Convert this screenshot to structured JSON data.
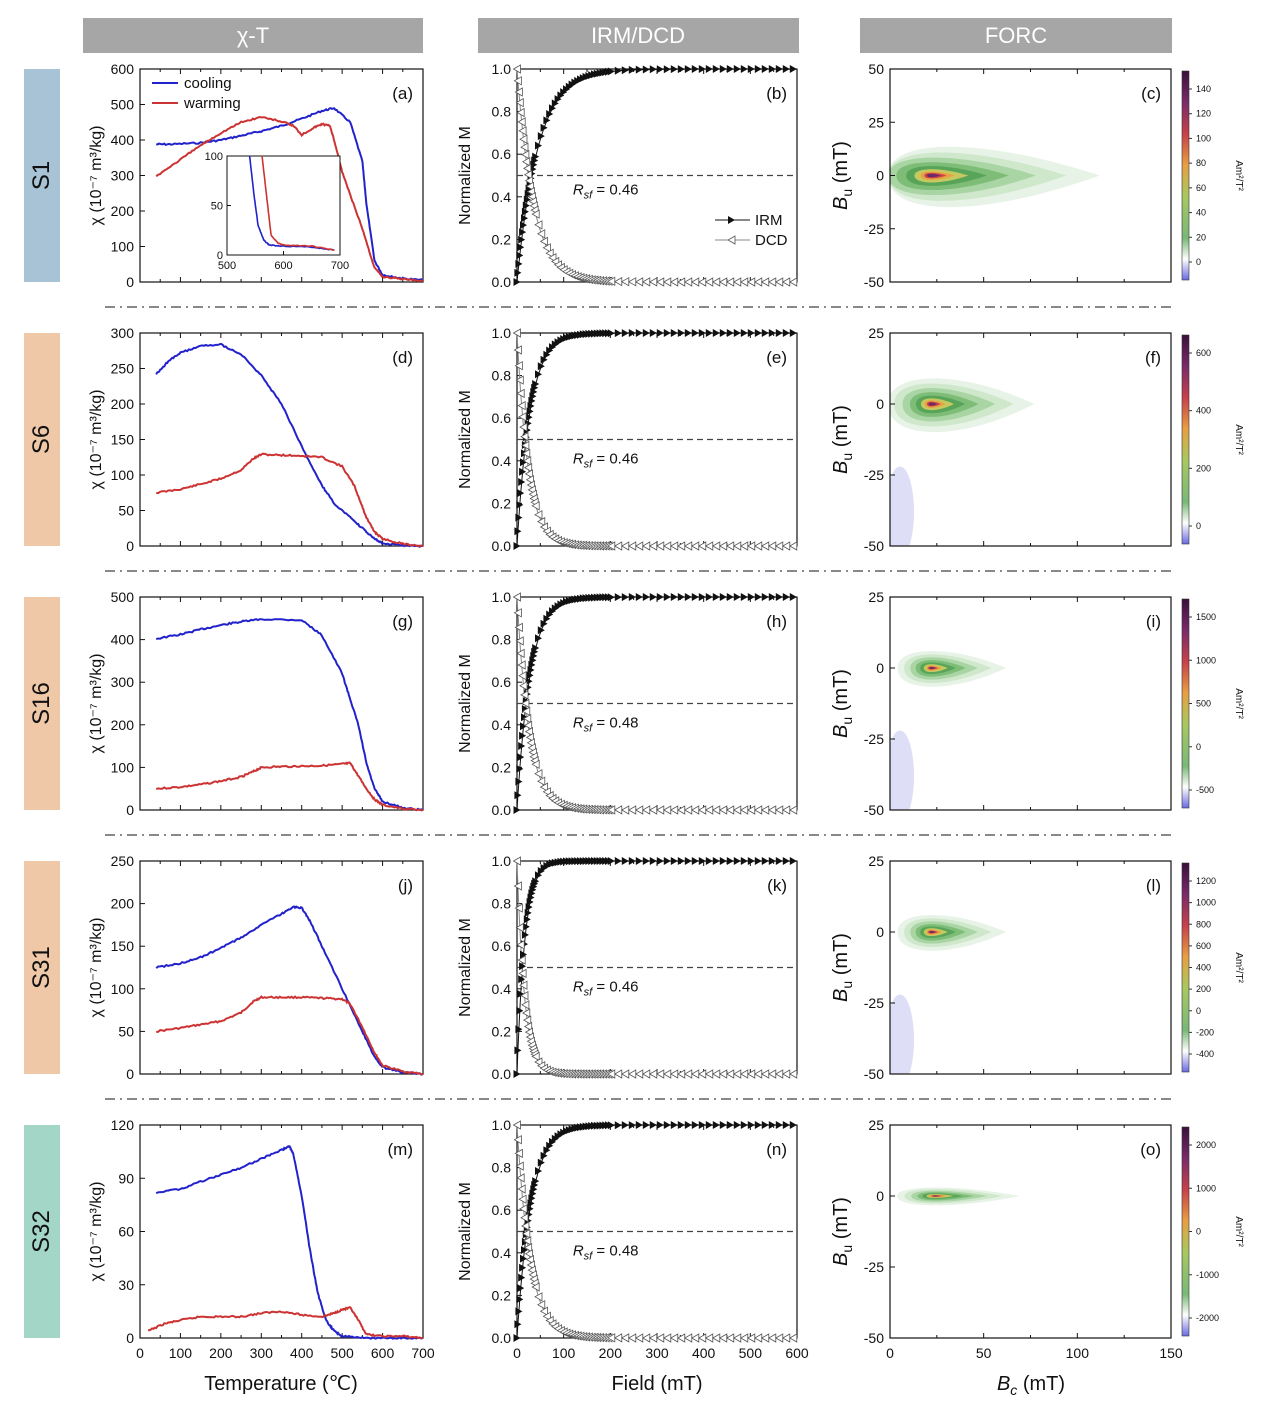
{
  "headers": [
    "χ-T",
    "IRM/DCD",
    "FORC"
  ],
  "colors": {
    "header_bg": "#a6a6a6",
    "cooling": "#2222cc",
    "warming": "#cc3333",
    "sample_bg": [
      "#a8c2d6",
      "#efc8a8",
      "#efc8a8",
      "#efc8a8",
      "#a4d6c8"
    ],
    "separator": "#888888"
  },
  "legend": {
    "cooling": "cooling",
    "warming": "warming",
    "irm": "IRM",
    "dcd": "DCD"
  },
  "axis_titles": {
    "chi_y": "χ (10⁻⁷ m³/kg)",
    "norm_y": "Normalized M",
    "bu_y": "Bu (mT)",
    "temp_x": "Temperature (℃)",
    "field_x": "Field (mT)",
    "bc_x": "Bc (mT)",
    "cb_unit": "Am²/T²"
  },
  "rows": [
    {
      "sample": "S1",
      "labels": [
        "(a)",
        "(b)",
        "(c)"
      ],
      "rsf": "Rsf = 0.46",
      "chi_ticks": [
        "0",
        "100",
        "200",
        "300",
        "400",
        "500",
        "600"
      ],
      "bu_ticks": [
        "50",
        "25",
        "0",
        "-25",
        "-50"
      ],
      "cb_ticks": [
        "140",
        "120",
        "100",
        "80",
        "60",
        "40",
        "20",
        "0"
      ],
      "inset_x_ticks": [
        "500",
        "600",
        "700"
      ],
      "inset_y_ticks": [
        "0",
        "50",
        "100"
      ]
    },
    {
      "sample": "S6",
      "labels": [
        "(d)",
        "(e)",
        "(f)"
      ],
      "rsf": "Rsf = 0.46",
      "chi_ticks": [
        "0",
        "50",
        "100",
        "150",
        "200",
        "250",
        "300"
      ],
      "bu_ticks": [
        "25",
        "0",
        "-25",
        "-50"
      ],
      "cb_ticks": [
        "600",
        "400",
        "200",
        "0"
      ]
    },
    {
      "sample": "S16",
      "labels": [
        "(g)",
        "(h)",
        "(i)"
      ],
      "rsf": "Rsf = 0.48",
      "chi_ticks": [
        "0",
        "100",
        "200",
        "300",
        "400",
        "500"
      ],
      "bu_ticks": [
        "25",
        "0",
        "-25",
        "-50"
      ],
      "cb_ticks": [
        "1500",
        "1000",
        "500",
        "0",
        "-500"
      ]
    },
    {
      "sample": "S31",
      "labels": [
        "(j)",
        "(k)",
        "(l)"
      ],
      "rsf": "Rsf = 0.46",
      "chi_ticks": [
        "0",
        "50",
        "100",
        "150",
        "200",
        "250"
      ],
      "bu_ticks": [
        "25",
        "0",
        "-25",
        "-50"
      ],
      "cb_ticks": [
        "1200",
        "1000",
        "800",
        "600",
        "400",
        "200",
        "0",
        "-200",
        "-400"
      ]
    },
    {
      "sample": "S32",
      "labels": [
        "(m)",
        "(n)",
        "(o)"
      ],
      "rsf": "Rsf = 0.48",
      "chi_ticks": [
        "0",
        "30",
        "60",
        "90",
        "120"
      ],
      "bu_ticks": [
        "25",
        "0",
        "-25",
        "-50"
      ],
      "cb_ticks": [
        "2000",
        "1000",
        "0",
        "-1000",
        "-2000"
      ]
    }
  ],
  "bottom_ticks": {
    "temp": [
      "0",
      "100",
      "200",
      "300",
      "400",
      "500",
      "600",
      "700"
    ],
    "field": [
      "0",
      "100",
      "200",
      "300",
      "400",
      "500",
      "600"
    ],
    "bc": [
      "0",
      "50",
      "100",
      "150"
    ],
    "norm": [
      "0.0",
      "0.2",
      "0.4",
      "0.6",
      "0.8",
      "1.0"
    ]
  },
  "chart_data": [
    {
      "type": "line",
      "panel": "(a)",
      "xlim": [
        0,
        700
      ],
      "ylim": [
        0,
        600
      ],
      "series": [
        {
          "name": "cooling",
          "x": [
            40,
            80,
            150,
            200,
            250,
            300,
            350,
            400,
            450,
            480,
            520,
            550,
            560,
            580,
            600,
            620,
            650,
            700
          ],
          "y": [
            388,
            388,
            392,
            400,
            412,
            425,
            440,
            460,
            482,
            490,
            450,
            340,
            220,
            60,
            20,
            15,
            10,
            5
          ]
        },
        {
          "name": "warming",
          "x": [
            40,
            100,
            150,
            200,
            250,
            300,
            350,
            380,
            400,
            430,
            450,
            470,
            480,
            500,
            520,
            550,
            580,
            600,
            640,
            700
          ],
          "y": [
            298,
            345,
            385,
            420,
            450,
            465,
            452,
            440,
            415,
            435,
            445,
            440,
            400,
            310,
            245,
            150,
            40,
            15,
            10,
            4
          ]
        }
      ]
    },
    {
      "type": "line",
      "panel": "(a) inset",
      "xlim": [
        500,
        700
      ],
      "ylim": [
        0,
        100
      ],
      "series": [
        {
          "name": "cooling",
          "x": [
            540,
            548,
            555,
            565,
            575,
            600,
            650,
            690
          ],
          "y": [
            100,
            60,
            30,
            15,
            10,
            9,
            8,
            5
          ]
        },
        {
          "name": "warming",
          "x": [
            562,
            570,
            578,
            590,
            600,
            650,
            690
          ],
          "y": [
            100,
            60,
            20,
            12,
            10,
            9,
            5
          ]
        }
      ]
    },
    {
      "type": "line",
      "panel": "(d)",
      "xlim": [
        0,
        700
      ],
      "ylim": [
        0,
        300
      ],
      "series": [
        {
          "name": "cooling",
          "x": [
            40,
            70,
            100,
            150,
            200,
            250,
            300,
            350,
            400,
            450,
            480,
            520,
            550,
            580,
            600,
            650,
            700
          ],
          "y": [
            242,
            260,
            272,
            282,
            284,
            270,
            240,
            200,
            140,
            85,
            60,
            40,
            25,
            10,
            4,
            1,
            0
          ]
        },
        {
          "name": "warming",
          "x": [
            40,
            100,
            150,
            200,
            250,
            280,
            300,
            350,
            400,
            450,
            500,
            530,
            550,
            560,
            580,
            600,
            650,
            700
          ],
          "y": [
            75,
            80,
            87,
            95,
            107,
            123,
            129,
            128,
            127,
            125,
            112,
            85,
            55,
            40,
            20,
            10,
            3,
            0
          ]
        }
      ]
    },
    {
      "type": "line",
      "panel": "(g)",
      "xlim": [
        0,
        700
      ],
      "ylim": [
        0,
        500
      ],
      "series": [
        {
          "name": "cooling",
          "x": [
            40,
            100,
            150,
            200,
            250,
            300,
            400,
            450,
            500,
            520,
            540,
            560,
            580,
            600,
            650,
            700
          ],
          "y": [
            402,
            412,
            424,
            434,
            442,
            448,
            446,
            410,
            320,
            260,
            200,
            110,
            50,
            20,
            5,
            0
          ]
        },
        {
          "name": "warming",
          "x": [
            40,
            100,
            150,
            200,
            250,
            280,
            300,
            350,
            400,
            450,
            500,
            520,
            540,
            560,
            580,
            600,
            650,
            700
          ],
          "y": [
            50,
            54,
            60,
            68,
            78,
            90,
            100,
            102,
            103,
            104,
            108,
            110,
            80,
            50,
            25,
            12,
            3,
            0
          ]
        }
      ]
    },
    {
      "type": "line",
      "panel": "(j)",
      "xlim": [
        0,
        700
      ],
      "ylim": [
        0,
        250
      ],
      "series": [
        {
          "name": "cooling",
          "x": [
            40,
            100,
            150,
            200,
            250,
            300,
            350,
            380,
            400,
            420,
            450,
            500,
            550,
            580,
            600,
            650,
            700
          ],
          "y": [
            125,
            130,
            137,
            148,
            160,
            175,
            188,
            196,
            195,
            180,
            150,
            100,
            50,
            20,
            8,
            2,
            0
          ]
        },
        {
          "name": "warming",
          "x": [
            40,
            100,
            150,
            200,
            250,
            280,
            300,
            350,
            400,
            450,
            500,
            520,
            550,
            580,
            600,
            650,
            700
          ],
          "y": [
            50,
            54,
            58,
            62,
            72,
            85,
            90,
            90,
            90,
            89,
            88,
            82,
            55,
            25,
            10,
            3,
            0
          ]
        }
      ]
    },
    {
      "type": "line",
      "panel": "(m)",
      "xlim": [
        0,
        700
      ],
      "ylim": [
        0,
        120
      ],
      "series": [
        {
          "name": "cooling",
          "x": [
            40,
            100,
            150,
            200,
            250,
            300,
            350,
            370,
            380,
            400,
            420,
            440,
            460,
            480,
            500,
            550,
            600,
            650,
            700
          ],
          "y": [
            82,
            84,
            88,
            92,
            96,
            101,
            106,
            108,
            103,
            80,
            50,
            25,
            10,
            4,
            1,
            0,
            0,
            0,
            0
          ]
        },
        {
          "name": "warming",
          "x": [
            20,
            60,
            100,
            150,
            200,
            250,
            300,
            350,
            400,
            450,
            480,
            500,
            520,
            540,
            560,
            600,
            650,
            700
          ],
          "y": [
            4,
            8,
            10,
            12,
            12,
            12,
            14,
            15,
            13,
            12,
            14,
            16,
            17,
            10,
            2,
            1,
            1,
            0
          ]
        }
      ]
    },
    {
      "type": "scatter",
      "panel": "(b)",
      "xlim": [
        0,
        600
      ],
      "ylim": [
        0,
        1
      ],
      "hline": 0.5,
      "k_irm": 45,
      "k_dcd": 35
    },
    {
      "type": "scatter",
      "panel": "(e)",
      "xlim": [
        0,
        600
      ],
      "ylim": [
        0,
        1
      ],
      "hline": 0.5,
      "k_irm": 28,
      "k_dcd": 24
    },
    {
      "type": "scatter",
      "panel": "(h)",
      "xlim": [
        0,
        600
      ],
      "ylim": [
        0,
        1
      ],
      "hline": 0.5,
      "k_irm": 28,
      "k_dcd": 26
    },
    {
      "type": "scatter",
      "panel": "(k)",
      "xlim": [
        0,
        600
      ],
      "ylim": [
        0,
        1
      ],
      "hline": 0.5,
      "k_irm": 17,
      "k_dcd": 16
    },
    {
      "type": "scatter",
      "panel": "(n)",
      "xlim": [
        0,
        600
      ],
      "ylim": [
        0,
        1
      ],
      "hline": 0.5,
      "k_irm": 30,
      "k_dcd": 28
    },
    {
      "type": "heatmap",
      "panel": "(c)",
      "xlim": [
        0,
        150
      ],
      "ylim": [
        -50,
        50
      ],
      "peak_bc": 22,
      "spread_bc": 90,
      "spread_bu": 18
    },
    {
      "type": "heatmap",
      "panel": "(f)",
      "xlim": [
        0,
        150
      ],
      "ylim": [
        -50,
        25
      ],
      "peak_bc": 22,
      "spread_bc": 55,
      "spread_bu": 12
    },
    {
      "type": "heatmap",
      "panel": "(i)",
      "xlim": [
        0,
        150
      ],
      "ylim": [
        -50,
        25
      ],
      "peak_bc": 22,
      "spread_bc": 40,
      "spread_bu": 8
    },
    {
      "type": "heatmap",
      "panel": "(l)",
      "xlim": [
        0,
        150
      ],
      "ylim": [
        -50,
        25
      ],
      "peak_bc": 22,
      "spread_bc": 40,
      "spread_bu": 8
    },
    {
      "type": "heatmap",
      "panel": "(o)",
      "xlim": [
        0,
        150
      ],
      "ylim": [
        -50,
        25
      ],
      "peak_bc": 24,
      "spread_bc": 45,
      "spread_bu": 4
    }
  ]
}
